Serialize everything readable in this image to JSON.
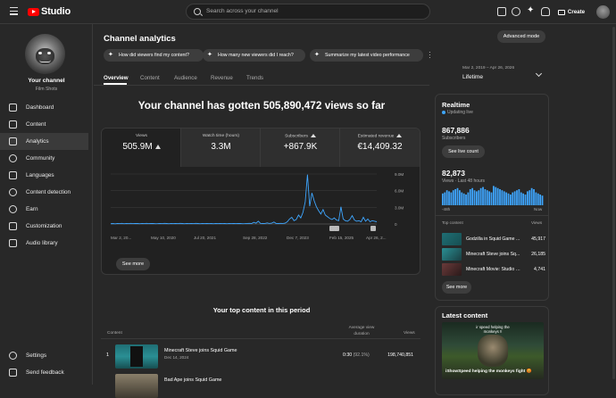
{
  "app": {
    "logo_text": "Studio",
    "search_placeholder": "Search across your channel",
    "create_label": "Create"
  },
  "channel": {
    "name": "Your channel",
    "subtitle": "Film Shots"
  },
  "sidebar": {
    "items": [
      {
        "label": "Dashboard",
        "icon": "dashboard-icon"
      },
      {
        "label": "Content",
        "icon": "content-icon"
      },
      {
        "label": "Analytics",
        "icon": "analytics-icon",
        "active": true
      },
      {
        "label": "Community",
        "icon": "community-icon"
      },
      {
        "label": "Languages",
        "icon": "languages-icon"
      },
      {
        "label": "Content detection",
        "icon": "content-detection-icon"
      },
      {
        "label": "Earn",
        "icon": "earn-icon"
      },
      {
        "label": "Customization",
        "icon": "customization-icon"
      },
      {
        "label": "Audio library",
        "icon": "audio-library-icon"
      }
    ],
    "bottom": [
      {
        "label": "Settings",
        "icon": "gear-icon"
      },
      {
        "label": "Send feedback",
        "icon": "feedback-icon"
      }
    ]
  },
  "page": {
    "title": "Channel analytics",
    "advanced_mode": "Advanced mode",
    "chips": [
      "How did viewers find my content?",
      "How many new viewers did I reach?",
      "Summarize my latest video performance"
    ],
    "tabs": [
      "Overview",
      "Content",
      "Audience",
      "Revenue",
      "Trends"
    ],
    "date_range": "Mar 2, 2019 – Apr 26, 2026",
    "period": "Lifetime",
    "headline": "Your channel has gotten 505,890,472 views so far"
  },
  "metrics": [
    {
      "label": "Views",
      "value": "505.9M"
    },
    {
      "label": "Watch time (hours)",
      "value": "3.3M"
    },
    {
      "label": "Subscribers",
      "value": "+867.9K"
    },
    {
      "label": "Estimated revenue",
      "value": "€14,409.32"
    }
  ],
  "chart_data": {
    "type": "line",
    "x_tick_labels": [
      "Mar 2, 20...",
      "May 10, 2020",
      "Jul 20, 2021",
      "Sep 28, 2022",
      "Dec 7, 2023",
      "Feb 15, 2025",
      "Apr 26, 2..."
    ],
    "y_tick_labels": [
      "9.0M",
      "6.0M",
      "3.0M",
      "0"
    ],
    "ylim": [
      0,
      9000000
    ],
    "series": [
      {
        "values": [
          0.05,
          0.08,
          0.04,
          0.1,
          0.06,
          0.12,
          0.05,
          0.09,
          0.07,
          0.11,
          0.06,
          0.1,
          0.08,
          0.05,
          0.09,
          0.07,
          0.12,
          0.06,
          0.08,
          0.1,
          0.05,
          0.07,
          0.09,
          0.06,
          0.11,
          0.08,
          0.05,
          0.1,
          0.07,
          0.09,
          0.06,
          0.12,
          0.08,
          0.05,
          0.1,
          0.07,
          0.09,
          0.06,
          0.11,
          0.08,
          0.05,
          0.1,
          0.07,
          0.09,
          0.06,
          0.08,
          0.05,
          0.1,
          0.07,
          0.09,
          0.06,
          0.08,
          0.05,
          0.1,
          0.07,
          0.09,
          0.06,
          0.08,
          0.1,
          0.05,
          0.07,
          0.09,
          0.12,
          0.08,
          0.3,
          0.15,
          0.5,
          0.12,
          0.08,
          0.1,
          0.2,
          0.09,
          0.15,
          0.35,
          0.1,
          0.08,
          0.12,
          0.09,
          0.15,
          0.4,
          0.9,
          1.2,
          0.6,
          0.8,
          1.6,
          1.1,
          2.1,
          4.0,
          8.9,
          3.2,
          5.6,
          4.2,
          3.1,
          2.4,
          1.8,
          2.6,
          1.6,
          1.3,
          1.0,
          0.8,
          1.1,
          0.7,
          0.6,
          3.1,
          0.9,
          0.6,
          0.5,
          0.8,
          1.5,
          0.7,
          0.5,
          0.6,
          0.4,
          1.2,
          0.5,
          0.9,
          0.4,
          0.6,
          0.5,
          0.4
        ]
      }
    ],
    "grid": true
  },
  "see_more": "See more",
  "realtime": {
    "title": "Realtime",
    "updating": "Updating live",
    "subscribers": "867,886",
    "subscribers_label": "Subscribers",
    "live_count": "See live count",
    "views": "82,873",
    "views_label": "Views · Last 48 hours",
    "axis_left": "-48h",
    "axis_right": "Now",
    "bars": [
      0.55,
      0.6,
      0.7,
      0.65,
      0.6,
      0.7,
      0.75,
      0.8,
      0.7,
      0.6,
      0.55,
      0.5,
      0.6,
      0.75,
      0.8,
      0.7,
      0.65,
      0.7,
      0.8,
      0.85,
      0.75,
      0.7,
      0.65,
      0.6,
      0.9,
      0.85,
      0.8,
      0.75,
      0.7,
      0.65,
      0.6,
      0.55,
      0.5,
      0.6,
      0.65,
      0.7,
      0.75,
      0.6,
      0.55,
      0.5,
      0.65,
      0.7,
      0.8,
      0.75,
      0.6,
      0.55,
      0.5,
      0.45
    ],
    "top_content_label": "Top content",
    "views_col": "Views",
    "rows": [
      {
        "title": "Godzilla in Squid Game ...",
        "views": "45,917"
      },
      {
        "title": "Minecraft Steve joins Sq...",
        "views": "26,185"
      },
      {
        "title": "Minecraft Movie: Studio v...",
        "views": "4,741"
      }
    ],
    "see_more": "See more"
  },
  "latest": {
    "title": "Latest content",
    "thumb_caption_top": "ir speed helping the monkeys !!",
    "thumb_caption": "iShowSpeed helping the monkeys fight 😡"
  },
  "top_content": {
    "title": "Your top content in this period",
    "col_content": "Content",
    "col_avg": "Average view duration",
    "col_views": "Views",
    "rows": [
      {
        "index": "1",
        "title": "Minecraft Steve joins Squid Game",
        "date": "Dec 14, 2024",
        "duration": "0:30",
        "pct": "(92.1%)",
        "views": "198,740,851"
      },
      {
        "index": "2",
        "title": "Bad Ape joins Squid Game",
        "date": "",
        "duration": "",
        "pct": "",
        "views": ""
      }
    ]
  }
}
